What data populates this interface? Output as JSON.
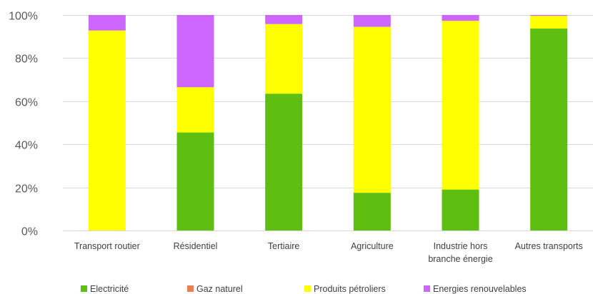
{
  "chart_data": {
    "type": "bar",
    "stacked": true,
    "percent": true,
    "categories": [
      [
        "Transport routier"
      ],
      [
        "Résidentiel"
      ],
      [
        "Tertiaire"
      ],
      [
        "Agriculture"
      ],
      [
        "Industrie hors",
        "branche énergie"
      ],
      [
        "Autres transports"
      ]
    ],
    "series": [
      {
        "name": "Electricité",
        "color": "#5fbf10",
        "values": [
          0,
          45.5,
          63.5,
          17.5,
          19,
          93.7
        ]
      },
      {
        "name": "Gaz naturel",
        "color": "#ed7d54",
        "values": [
          0,
          0,
          0,
          0,
          0,
          0
        ]
      },
      {
        "name": "Produits pétroliers",
        "color": "#ffff00",
        "values": [
          92.8,
          21,
          32.3,
          77,
          78.3,
          5.9
        ]
      },
      {
        "name": "Energies renouvelables",
        "color": "#cc66ff",
        "values": [
          7.2,
          33.5,
          4.2,
          5.5,
          2.7,
          0.4
        ]
      }
    ],
    "ylim": [
      0,
      100
    ],
    "yticks": [
      "0%",
      "20%",
      "40%",
      "60%",
      "80%",
      "100%"
    ],
    "grid": true,
    "legend_position": "bottom",
    "title": "",
    "xlabel": "",
    "ylabel": ""
  }
}
